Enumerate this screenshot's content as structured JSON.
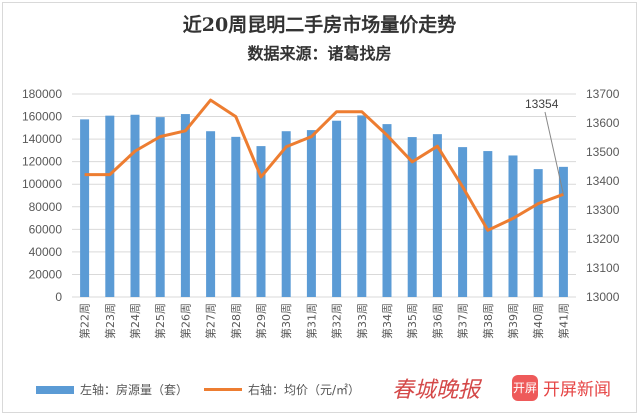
{
  "chart_data": {
    "type": "bar+line",
    "title": "近20周昆明二手房市场量价走势",
    "subtitle": "数据来源：诸葛找房",
    "categories": [
      "第22周",
      "第23周",
      "第24周",
      "第25周",
      "第26周",
      "第27周",
      "第28周",
      "第29周",
      "第30周",
      "第31周",
      "第32周",
      "第33周",
      "第34周",
      "第35周",
      "第36周",
      "第37周",
      "第38周",
      "第39周",
      "第40周",
      "第41周"
    ],
    "series": [
      {
        "name": "左轴：房源量（套）",
        "type": "bar",
        "axis": "left",
        "color": "#5b9bd5",
        "values": [
          157500,
          160800,
          161600,
          159500,
          162200,
          147000,
          142000,
          133800,
          147000,
          148000,
          156300,
          161000,
          153300,
          141800,
          144400,
          132900,
          129400,
          125500,
          113400,
          115400
        ]
      },
      {
        "name": "右轴：均价（元/㎡）",
        "type": "line",
        "axis": "right",
        "color": "#ed7d31",
        "values": [
          13422,
          13422,
          13503,
          13553,
          13573,
          13679,
          13622,
          13414,
          13518,
          13553,
          13639,
          13639,
          13558,
          13466,
          13520,
          13380,
          13230,
          13271,
          13322,
          13354
        ]
      }
    ],
    "left_axis": {
      "range": [
        0,
        180000
      ],
      "ticks": [
        "0",
        "20000",
        "40000",
        "60000",
        "80000",
        "100000",
        "120000",
        "140000",
        "160000",
        "180000"
      ]
    },
    "right_axis": {
      "range": [
        13000,
        13700
      ],
      "ticks": [
        "13000",
        "13100",
        "13200",
        "13300",
        "13400",
        "13500",
        "13600",
        "13700"
      ]
    },
    "annotation": "13354",
    "grid": true,
    "legend_position": "bottom"
  },
  "watermark": {
    "text": "春城晚报",
    "logo_mark": "开屏",
    "logo_text": "开屏新闻"
  }
}
